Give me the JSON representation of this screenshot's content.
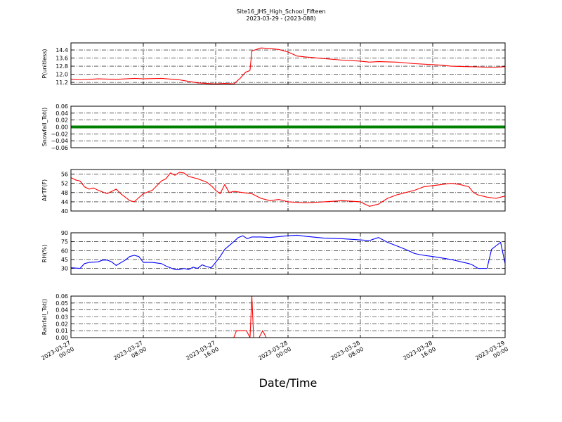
{
  "title": {
    "line1": "Site16_JHS_High_School_Fifteen",
    "line2": "2023-03-29 - (2023-088)"
  },
  "xlabel": "Date/Time",
  "x_ticks": [
    [
      "2023-03-27",
      "00:00"
    ],
    [
      "2023-03-27",
      "08:00"
    ],
    [
      "2023-03-27",
      "16:00"
    ],
    [
      "2023-03-28",
      "00:00"
    ],
    [
      "2023-03-28",
      "08:00"
    ],
    [
      "2023-03-28",
      "16:00"
    ],
    [
      "2023-03-29",
      "00:00"
    ]
  ],
  "chart_data": [
    {
      "type": "line",
      "ylabel": "P(unitless)",
      "ylim": [
        11.0,
        15.1
      ],
      "yticks": [
        11.2,
        12.0,
        12.8,
        13.6,
        14.4
      ],
      "ytick_labels": [
        "11.2",
        "12.0",
        "12.8",
        "13.6",
        "14.4"
      ],
      "color": "#ff0000",
      "x_hours": [
        0,
        1,
        3,
        5,
        7,
        8,
        10,
        12,
        13,
        14,
        15,
        16,
        17,
        18,
        18.7,
        19.3,
        19.6,
        19.8,
        20,
        21,
        22,
        23,
        24,
        24.5,
        25,
        26,
        28,
        30,
        32,
        33,
        34,
        36,
        38,
        40,
        41,
        42,
        44,
        46,
        47,
        48
      ],
      "y": [
        11.5,
        11.45,
        11.55,
        11.5,
        11.6,
        11.55,
        11.6,
        11.45,
        11.3,
        11.15,
        11.1,
        11.05,
        11.1,
        11.05,
        11.6,
        12.2,
        12.3,
        12.4,
        14.3,
        14.6,
        14.55,
        14.45,
        14.2,
        14.0,
        13.8,
        13.7,
        13.55,
        13.4,
        13.3,
        13.2,
        13.25,
        13.2,
        13.05,
        12.95,
        12.9,
        12.8,
        12.75,
        12.7,
        12.7,
        12.75
      ]
    },
    {
      "type": "line",
      "ylabel": "Snowfall_Tot()",
      "ylim": [
        -0.06,
        0.06
      ],
      "yticks": [
        -0.06,
        -0.04,
        -0.02,
        0.0,
        0.02,
        0.04,
        0.06
      ],
      "ytick_labels": [
        "−0.06",
        "−0.04",
        "−0.02",
        "0.00",
        "0.02",
        "0.04",
        "0.06"
      ],
      "color": "#008000",
      "x_hours": [
        0,
        48
      ],
      "y": [
        0.0,
        0.0
      ]
    },
    {
      "type": "line",
      "ylabel": "AirTF(F)",
      "ylim": [
        40,
        58
      ],
      "yticks": [
        40,
        44,
        48,
        52,
        56
      ],
      "ytick_labels": [
        "40",
        "44",
        "48",
        "52",
        "56"
      ],
      "color": "#ff0000",
      "x_hours": [
        0,
        0.5,
        1,
        1.5,
        2,
        2.5,
        3,
        4,
        5,
        5.5,
        6,
        6.5,
        7,
        8,
        9,
        10,
        10.5,
        11,
        11.5,
        12,
        12.5,
        13,
        13.5,
        14,
        15,
        15.5,
        16,
        16.5,
        17,
        17.5,
        18,
        19,
        20,
        21,
        22,
        23,
        24,
        26,
        28,
        30,
        32,
        32.5,
        33,
        33.5,
        34,
        35,
        36,
        37,
        38,
        39,
        40,
        41,
        42,
        43,
        44,
        44.5,
        45,
        46,
        47,
        48
      ],
      "y": [
        54.5,
        53.5,
        53,
        50.5,
        49.5,
        50,
        49,
        47.5,
        49.5,
        47.5,
        46,
        44.5,
        44,
        47.5,
        49,
        53,
        54,
        56.5,
        55.5,
        56.8,
        56.5,
        55,
        54.5,
        54,
        52.5,
        51,
        49,
        47.5,
        51.5,
        48,
        48.5,
        48,
        47.5,
        45.5,
        44.5,
        45,
        44,
        43.5,
        44,
        44.5,
        44,
        43,
        42,
        42.5,
        43,
        45.5,
        47,
        48,
        49,
        50.5,
        51,
        51.5,
        52,
        51.5,
        50.5,
        48,
        47,
        46,
        45.5,
        46.5
      ]
    },
    {
      "type": "line",
      "ylabel": "RH(%)",
      "ylim": [
        20,
        90
      ],
      "yticks": [
        30,
        45,
        60,
        75,
        90
      ],
      "ytick_labels": [
        "30",
        "45",
        "60",
        "75",
        "90"
      ],
      "color": "#0000ff",
      "x_hours": [
        0,
        1,
        1.5,
        2,
        3,
        3.5,
        4,
        4.5,
        5,
        6,
        6.5,
        7,
        7.5,
        8,
        9,
        10,
        10.5,
        11,
        11.5,
        12,
        12.5,
        13,
        13.5,
        14,
        14.5,
        15,
        15.5,
        16,
        16.5,
        17,
        18,
        18.5,
        19,
        19.5,
        20,
        21,
        22,
        24,
        25,
        26,
        28,
        30,
        32,
        33,
        34,
        35,
        36,
        37,
        38,
        39,
        40,
        42,
        44,
        44.5,
        45,
        46,
        46.5,
        47,
        47.5,
        48
      ],
      "y": [
        31,
        30,
        38,
        40,
        41,
        44,
        44,
        41,
        35,
        44,
        50,
        52,
        50,
        40,
        40,
        38,
        34,
        31,
        28,
        28,
        30,
        28,
        32,
        30,
        36,
        33,
        31,
        40,
        50,
        62,
        75,
        82,
        85,
        80,
        83,
        83,
        82,
        85,
        86,
        84,
        81,
        80,
        78,
        77,
        82,
        74,
        68,
        62,
        55,
        52,
        50,
        45,
        38,
        35,
        30,
        30,
        62,
        68,
        74,
        38
      ]
    },
    {
      "type": "line",
      "ylabel": "Rainfall_Tot()",
      "ylim": [
        0.0,
        0.06
      ],
      "yticks": [
        0.0,
        0.01,
        0.02,
        0.03,
        0.04,
        0.05,
        0.06
      ],
      "ytick_labels": [
        "0.00",
        "0.01",
        "0.02",
        "0.03",
        "0.04",
        "0.05",
        "0.06"
      ],
      "color": "#ff0000",
      "x_hours": [
        0,
        18,
        18.3,
        19,
        19.4,
        19.8,
        20,
        20.2,
        20.8,
        21.2,
        21.6,
        48
      ],
      "y": [
        0.0,
        0.0,
        0.01,
        0.01,
        0.01,
        0.0,
        0.06,
        0.0,
        0.0,
        0.01,
        0.0,
        0.0
      ]
    }
  ]
}
